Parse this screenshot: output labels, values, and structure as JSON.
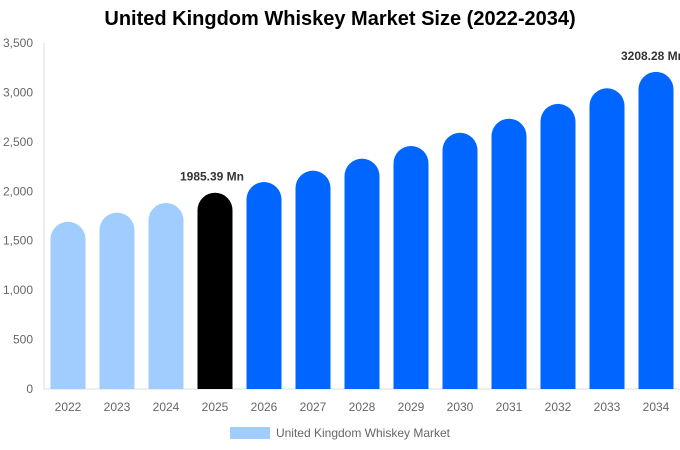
{
  "chart_data": {
    "type": "bar",
    "title": "United Kingdom Whiskey Market Size (2022-2034)",
    "categories": [
      "2022",
      "2023",
      "2024",
      "2025",
      "2026",
      "2027",
      "2028",
      "2029",
      "2030",
      "2031",
      "2032",
      "2033",
      "2034"
    ],
    "series": [
      {
        "name": "United Kingdom Whiskey Market",
        "values": [
          1692,
          1784,
          1882,
          1985.39,
          2094,
          2209,
          2330,
          2458,
          2592,
          2734,
          2884,
          3042,
          3208.28
        ]
      }
    ],
    "bar_colors": [
      "#a0cdfd",
      "#a0cdfd",
      "#a0cdfd",
      "#000000",
      "#0066ff",
      "#0066ff",
      "#0066ff",
      "#0066ff",
      "#0066ff",
      "#0066ff",
      "#0066ff",
      "#0066ff",
      "#0066ff"
    ],
    "data_labels": [
      {
        "category": "2025",
        "text": "1985.39 Mn"
      },
      {
        "category": "2034",
        "text": "3208.28 Mn"
      }
    ],
    "yticks": [
      "0",
      "500",
      "1,000",
      "1,500",
      "2,000",
      "2,500",
      "3,000",
      "3,500"
    ],
    "ylim": [
      0,
      3500
    ],
    "xlabel": "",
    "ylabel": "",
    "grid": false,
    "legend_position": "bottom",
    "legend_color": "#a0cdfd"
  }
}
